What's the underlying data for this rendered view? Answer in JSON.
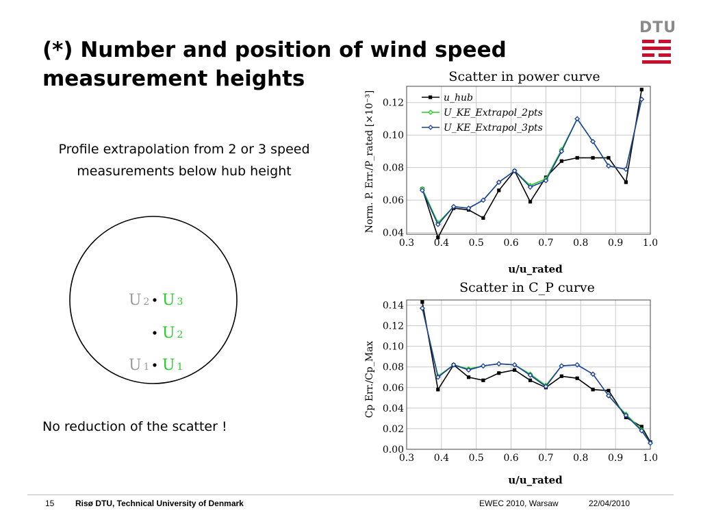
{
  "slide": {
    "title_lines": [
      "(*) Number and position of wind speed",
      "measurement heights"
    ],
    "subtitle_lines": [
      "Profile extrapolation from 2 or 3 speed",
      "measurements below hub height"
    ],
    "note": "No reduction of the scatter !",
    "logo_text": "DTU",
    "colors": {
      "logo_red": "#c8102e",
      "logo_grey": "#8a8a8a",
      "green": "#22cc22",
      "blue": "#1f3f9f",
      "black": "#000000"
    }
  },
  "diagram": {
    "left_labels": [
      {
        "u": "U",
        "sub": "2",
        "color": "#9a9a9a"
      },
      {
        "u": "U",
        "sub": "1",
        "color": "#9a9a9a"
      }
    ],
    "right_labels": [
      {
        "u": "U",
        "sub": "3",
        "color": "#22cc22"
      },
      {
        "u": "U",
        "sub": "2",
        "color": "#22cc22"
      },
      {
        "u": "U",
        "sub": "1",
        "color": "#22cc22"
      }
    ]
  },
  "footer": {
    "page": "15",
    "org": "Risø DTU, Technical University of Denmark",
    "event": "EWEC 2010, Warsaw",
    "date": "22/04/2010"
  },
  "chart_data": [
    {
      "type": "line",
      "title": "Scatter in power curve",
      "xlabel": "u/u_rated",
      "ylabel": "Norm. P. Err./P_rated [×10⁻³]",
      "xlim": [
        0.3,
        1.0
      ],
      "ylim": [
        0.039,
        0.13
      ],
      "xticks": [
        "0.3",
        "0.4",
        "0.5",
        "0.6",
        "0.7",
        "0.8",
        "0.9",
        "1.0"
      ],
      "yticks": [
        [
          "0.04",
          0.04
        ],
        [
          "0.06",
          0.06
        ],
        [
          "0.08",
          0.08
        ],
        [
          "0.10",
          0.1
        ],
        [
          "0.12",
          0.12
        ]
      ],
      "grid": true,
      "legend": "top-left",
      "series": [
        {
          "name": "u_hub",
          "color": "#000000",
          "marker": "square",
          "x": [
            0.345,
            0.39,
            0.435,
            0.478,
            0.52,
            0.565,
            0.61,
            0.655,
            0.7,
            0.745,
            0.79,
            0.835,
            0.88,
            0.93,
            0.975
          ],
          "y": [
            0.067,
            0.037,
            0.055,
            0.054,
            0.049,
            0.066,
            0.078,
            0.059,
            0.074,
            0.084,
            0.086,
            0.086,
            0.086,
            0.071,
            0.128
          ]
        },
        {
          "name": "U_KE_Extrapol_2pts",
          "color": "#22cc22",
          "marker": "diamond",
          "x": [
            0.345,
            0.39,
            0.435,
            0.478,
            0.52,
            0.565,
            0.61,
            0.655,
            0.7,
            0.745,
            0.79,
            0.835,
            0.88,
            0.93,
            0.975
          ],
          "y": [
            0.067,
            0.046,
            0.056,
            0.055,
            0.06,
            0.071,
            0.078,
            0.069,
            0.073,
            0.091,
            0.11,
            0.096,
            0.081,
            0.079,
            0.122
          ]
        },
        {
          "name": "U_KE_Extrapol_3pts",
          "color": "#1f3f9f",
          "marker": "diamond",
          "x": [
            0.345,
            0.39,
            0.435,
            0.478,
            0.52,
            0.565,
            0.61,
            0.655,
            0.7,
            0.745,
            0.79,
            0.835,
            0.88,
            0.93,
            0.975
          ],
          "y": [
            0.066,
            0.045,
            0.056,
            0.055,
            0.06,
            0.071,
            0.078,
            0.068,
            0.072,
            0.09,
            0.11,
            0.096,
            0.081,
            0.079,
            0.122
          ]
        }
      ]
    },
    {
      "type": "line",
      "title": "Scatter in C_P curve",
      "xlabel": "u/u_rated",
      "ylabel": "Cp Err./Cp_Max",
      "xlim": [
        0.3,
        1.0
      ],
      "ylim": [
        0.0,
        0.145
      ],
      "xticks": [
        "0.3",
        "0.4",
        "0.5",
        "0.6",
        "0.7",
        "0.8",
        "0.9",
        "1.0"
      ],
      "yticks": [
        [
          "0.00",
          0.0
        ],
        [
          "0.02",
          0.02
        ],
        [
          "0.04",
          0.04
        ],
        [
          "0.06",
          0.06
        ],
        [
          "0.08",
          0.08
        ],
        [
          "0.10",
          0.1
        ],
        [
          "0.12",
          0.12
        ],
        [
          "0.14",
          0.14
        ]
      ],
      "grid": true,
      "series": [
        {
          "name": "u_hub",
          "color": "#000000",
          "marker": "square",
          "x": [
            0.345,
            0.39,
            0.435,
            0.478,
            0.52,
            0.565,
            0.61,
            0.655,
            0.7,
            0.745,
            0.79,
            0.835,
            0.88,
            0.93,
            0.975,
            1.0
          ],
          "y": [
            0.143,
            0.058,
            0.082,
            0.07,
            0.067,
            0.074,
            0.077,
            0.067,
            0.06,
            0.071,
            0.069,
            0.058,
            0.057,
            0.031,
            0.022,
            0.007
          ]
        },
        {
          "name": "U_KE_Extrapol_2pts",
          "color": "#22cc22",
          "marker": "diamond",
          "x": [
            0.345,
            0.39,
            0.435,
            0.478,
            0.52,
            0.565,
            0.61,
            0.655,
            0.7,
            0.745,
            0.79,
            0.835,
            0.88,
            0.93,
            0.975,
            1.0
          ],
          "y": [
            0.137,
            0.071,
            0.082,
            0.078,
            0.081,
            0.083,
            0.082,
            0.073,
            0.062,
            0.081,
            0.082,
            0.073,
            0.052,
            0.034,
            0.019,
            0.006
          ]
        },
        {
          "name": "U_KE_Extrapol_3pts",
          "color": "#1f3f9f",
          "marker": "diamond",
          "x": [
            0.345,
            0.39,
            0.435,
            0.478,
            0.52,
            0.565,
            0.61,
            0.655,
            0.7,
            0.745,
            0.79,
            0.835,
            0.88,
            0.93,
            0.975,
            1.0
          ],
          "y": [
            0.137,
            0.07,
            0.082,
            0.077,
            0.081,
            0.083,
            0.082,
            0.072,
            0.061,
            0.081,
            0.082,
            0.073,
            0.052,
            0.033,
            0.018,
            0.006
          ]
        }
      ]
    }
  ]
}
